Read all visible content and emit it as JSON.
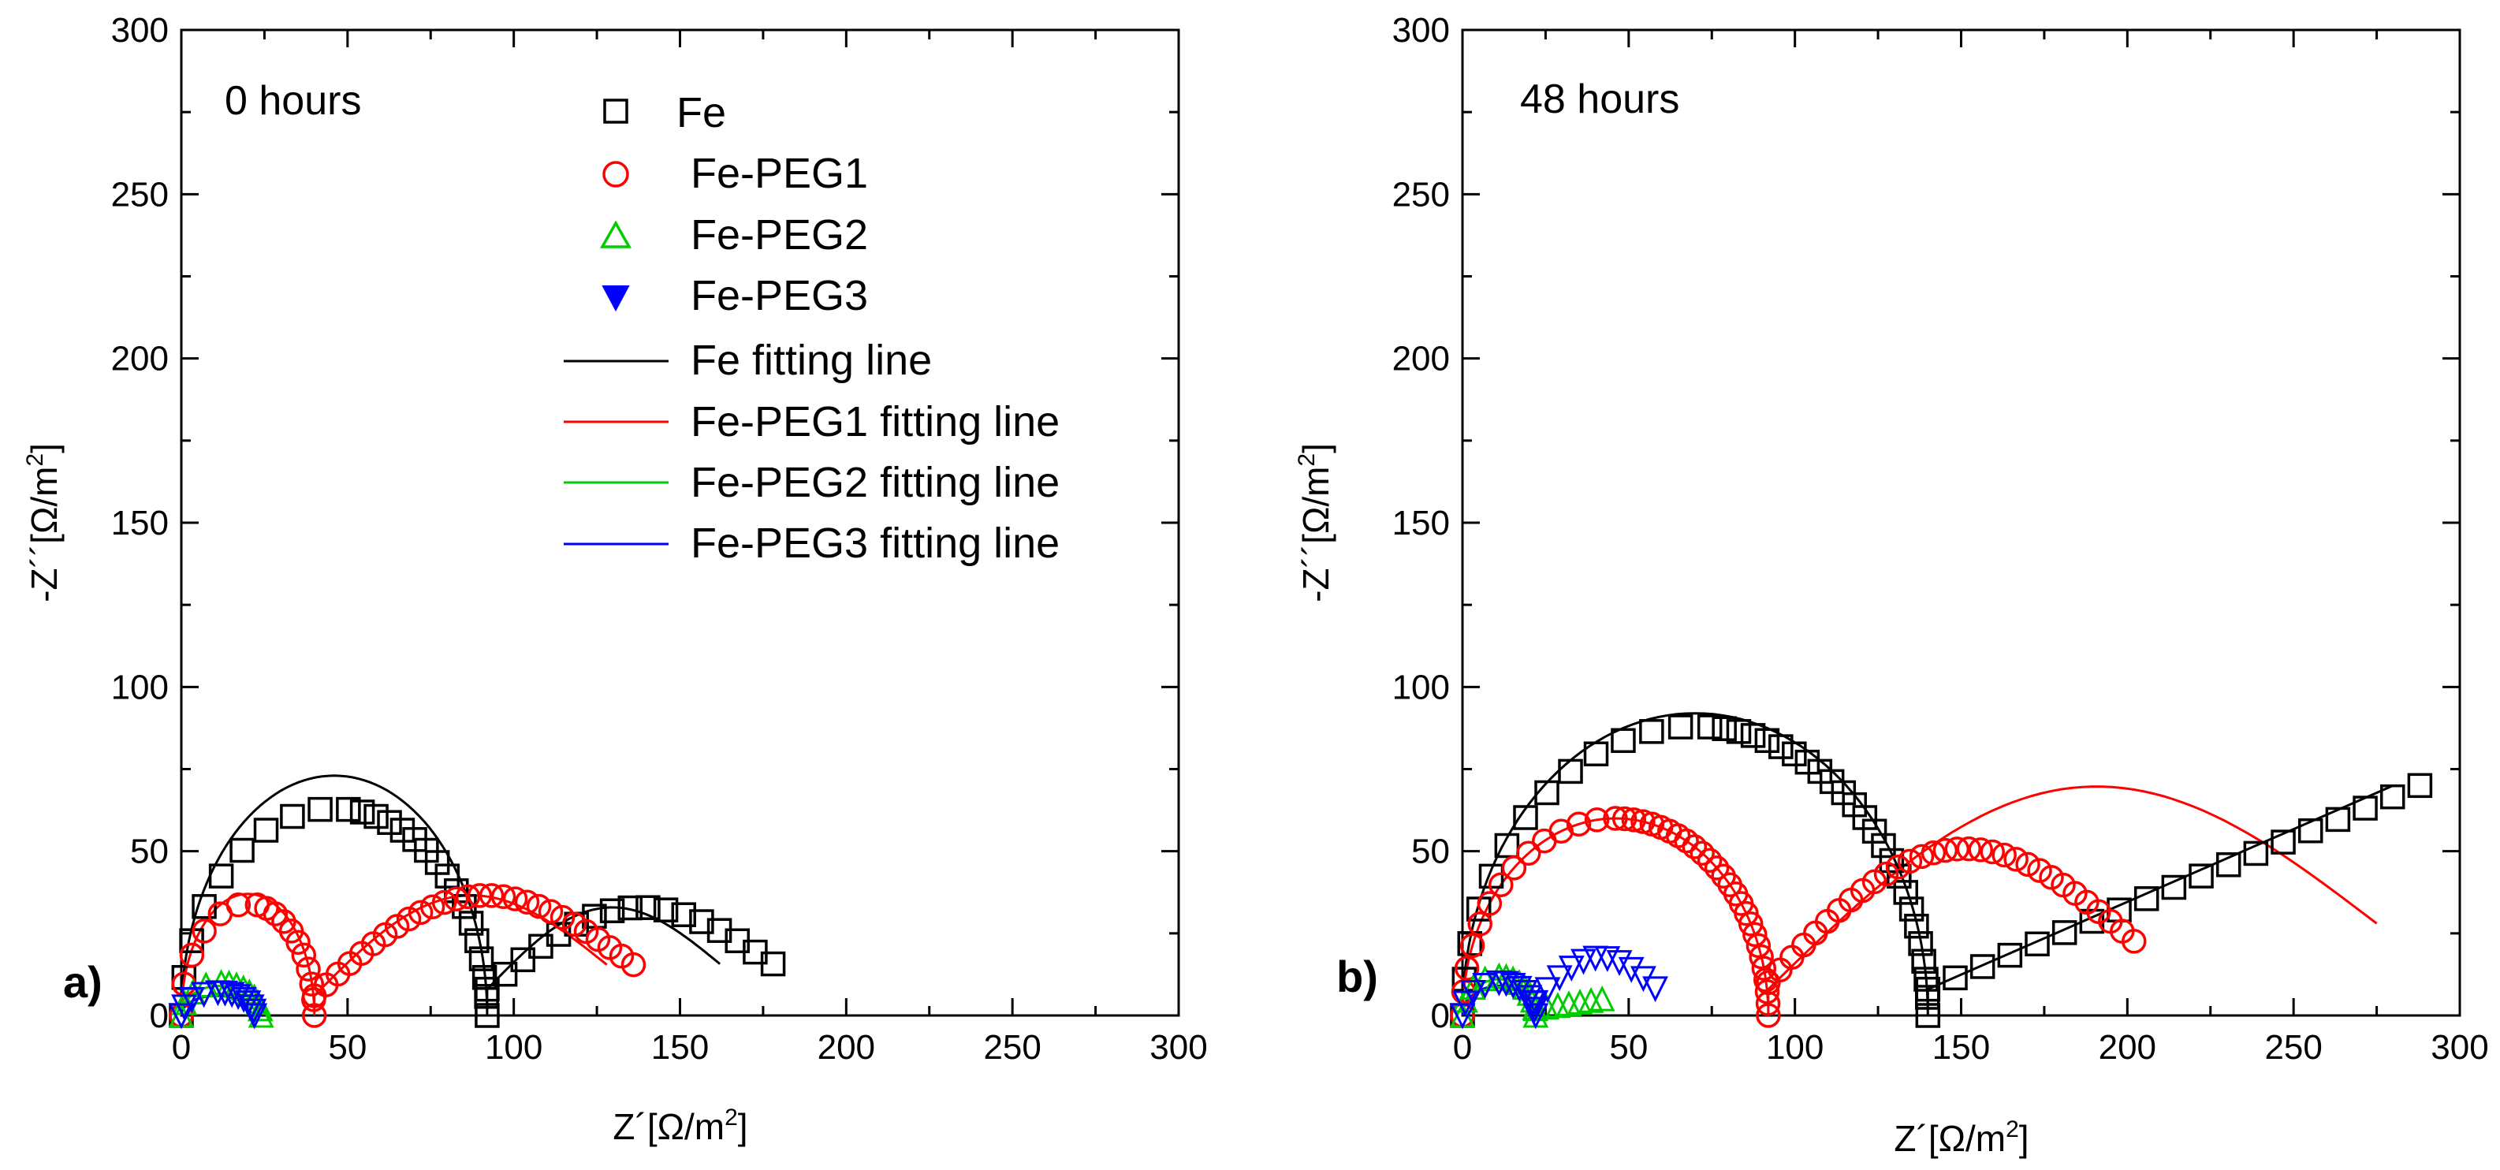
{
  "chart_data": [
    {
      "type": "scatter",
      "panel_label": "a)",
      "annotation": "0 hours",
      "xlabel": "Z´[Ω/m",
      "xlabel_sup": "2",
      "xlabel_end": "]",
      "ylabel": "-Z´´[Ω/m",
      "ylabel_sup": "2",
      "ylabel_end": "]",
      "xlim": [
        0,
        300
      ],
      "ylim": [
        0,
        300
      ],
      "xticks": [
        "0",
        "50",
        "100",
        "150",
        "200",
        "250",
        "300"
      ],
      "yticks": [
        "0",
        "50",
        "100",
        "150",
        "200",
        "250",
        "300"
      ],
      "grid": false,
      "legend_position": "top-center",
      "series": [
        {
          "name": "Fe",
          "color": "#000000",
          "marker": "square",
          "arc": {
            "x0": 0,
            "x1": 92,
            "h": 63
          },
          "tail": {
            "x0": 92,
            "x1": 178,
            "h": 22,
            "y0": 8
          }
        },
        {
          "name": "Fe-PEG1",
          "color": "#ff0000",
          "marker": "circle",
          "arc": {
            "x0": 0,
            "x1": 40,
            "h": 34
          },
          "tail": {
            "x0": 40,
            "x1": 136,
            "h": 27,
            "y0": 6
          }
        },
        {
          "name": "Fe-PEG2",
          "color": "#00cc00",
          "marker": "triangle-up",
          "arc": {
            "x0": 0,
            "x1": 24,
            "h": 10
          }
        },
        {
          "name": "Fe-PEG3",
          "color": "#0000ff",
          "marker": "triangle-down",
          "arc": {
            "x0": 0,
            "x1": 22,
            "h": 7
          }
        }
      ],
      "fits": [
        {
          "name": "Fe fitting line",
          "color": "#000000",
          "arc": {
            "x0": 0,
            "x1": 92,
            "h": 73
          },
          "tail": {
            "x0": 92,
            "x1": 162,
            "h": 22,
            "y0": 8
          }
        },
        {
          "name": "Fe-PEG1 fitting line",
          "color": "#ff0000",
          "arc": {
            "x0": 0,
            "x1": 40,
            "h": 37
          },
          "tail": {
            "x0": 40,
            "x1": 128,
            "h": 27,
            "y0": 6
          }
        },
        {
          "name": "Fe-PEG2 fitting line",
          "color": "#00cc00",
          "arc": {
            "x0": 0,
            "x1": 23,
            "h": 9
          }
        },
        {
          "name": "Fe-PEG3 fitting line",
          "color": "#0000ff",
          "arc": {
            "x0": 0,
            "x1": 21,
            "h": 6
          }
        }
      ]
    },
    {
      "type": "scatter",
      "panel_label": "b)",
      "annotation": "48 hours",
      "xlabel": "Z´[Ω/m",
      "xlabel_sup": "2",
      "xlabel_end": "]",
      "ylabel": "-Z´´[Ω/m",
      "ylabel_sup": "2",
      "ylabel_end": "]",
      "xlim": [
        0,
        300
      ],
      "ylim": [
        0,
        300
      ],
      "xticks": [
        "0",
        "50",
        "100",
        "150",
        "200",
        "250",
        "300"
      ],
      "yticks": [
        "0",
        "50",
        "100",
        "150",
        "200",
        "250",
        "300"
      ],
      "grid": false,
      "series": [
        {
          "name": "Fe",
          "color": "#000000",
          "marker": "square",
          "arc": {
            "x0": 0,
            "x1": 140,
            "h": 88
          },
          "line": {
            "x0": 140,
            "y0": 8,
            "x1": 288,
            "y1": 70
          }
        },
        {
          "name": "Fe-PEG1",
          "color": "#ff0000",
          "marker": "circle",
          "arc": {
            "x0": 0,
            "x1": 92,
            "h": 60
          },
          "tail": {
            "x0": 92,
            "x1": 202,
            "h": 36,
            "y0": 10
          }
        },
        {
          "name": "Fe-PEG2",
          "color": "#00cc00",
          "marker": "triangle-up",
          "arc": {
            "x0": 0,
            "x1": 22,
            "h": 12
          },
          "line": {
            "x0": 22,
            "y0": 2,
            "x1": 42,
            "y1": 5
          }
        },
        {
          "name": "Fe-PEG3",
          "color": "#0000ff",
          "marker": "triangle-down",
          "arc": {
            "x0": 0,
            "x1": 22,
            "h": 10
          },
          "tail": {
            "x0": 22,
            "x1": 58,
            "h": 12,
            "y0": 4
          }
        }
      ],
      "fits": [
        {
          "name": "Fe fitting line",
          "color": "#000000",
          "arc": {
            "x0": 0,
            "x1": 140,
            "h": 92
          },
          "line": {
            "x0": 140,
            "y0": 8,
            "x1": 280,
            "y1": 70
          }
        },
        {
          "name": "Fe-PEG1 fitting line",
          "color": "#ff0000",
          "arc": {
            "x0": 0,
            "x1": 92,
            "h": 60
          },
          "tail": {
            "x0": 92,
            "x1": 275,
            "h": 54,
            "y0": 8,
            "end": 28
          }
        },
        {
          "name": "Fe-PEG2 fitting line",
          "color": "#00cc00",
          "arc": {
            "x0": 0,
            "x1": 22,
            "h": 11
          }
        },
        {
          "name": "Fe-PEG3 fitting line",
          "color": "#0000ff",
          "arc": {
            "x0": 0,
            "x1": 22,
            "h": 9
          }
        }
      ]
    }
  ]
}
